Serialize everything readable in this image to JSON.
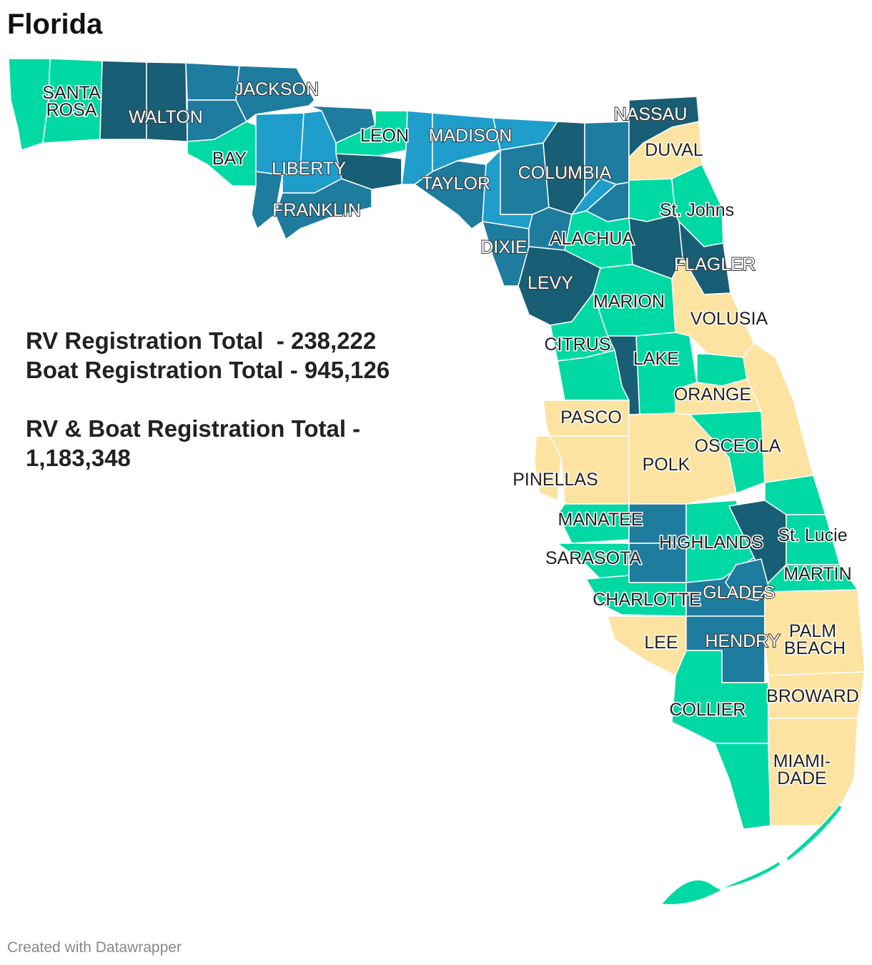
{
  "title": "Florida",
  "stats": {
    "rv_line": "RV Registration Total  - 238,222",
    "boat_line": "Boat Registration Total - 945,126",
    "combined_line1": "RV & Boat Registration Total -",
    "combined_line2": "1,183,348"
  },
  "credit": "Created with Datawrapper",
  "colors": {
    "teal_light": "#00d9a3",
    "blue_light": "#1f9ecb",
    "blue_mid": "#1e7c9e",
    "blue_dark": "#185e74",
    "sand": "#fde3a1"
  },
  "counties": {
    "santa_rosa": "SANTA",
    "santa_rosa_2": "ROSA",
    "walton": "WALTON",
    "jackson": "JACKSON",
    "bay": "BAY",
    "liberty": "LIBERTY",
    "leon": "LEON",
    "madison": "MADISON",
    "nassau": "NASSAU",
    "duval": "DUVAL",
    "franklin": "FRANKLIN",
    "taylor": "TAYLOR",
    "columbia": "COLUMBIA",
    "st_johns": "St. Johns",
    "dixie": "DIXIE",
    "alachua": "ALACHUA",
    "flagler": "FLAGLER",
    "levy": "LEVY",
    "marion": "MARION",
    "volusia": "VOLUSIA",
    "citrus": "CITRUS",
    "lake": "LAKE",
    "orange": "ORANGE",
    "pasco": "PASCO",
    "osceola": "OSCEOLA",
    "polk": "POLK",
    "pinellas": "PINELLAS",
    "manatee": "MANATEE",
    "st_lucie": "St. Lucie",
    "highlands": "HIGHLANDS",
    "sarasota": "SARASOTA",
    "martin": "MARTIN",
    "charlotte": "CHARLOTTE",
    "glades": "GLADES",
    "lee": "LEE",
    "hendry": "HENDRY",
    "palm_beach": "PALM",
    "palm_beach_2": "BEACH",
    "broward": "BROWARD",
    "collier": "COLLIER",
    "miami_dade": "MIAMI-",
    "miami_dade_2": "DADE"
  }
}
